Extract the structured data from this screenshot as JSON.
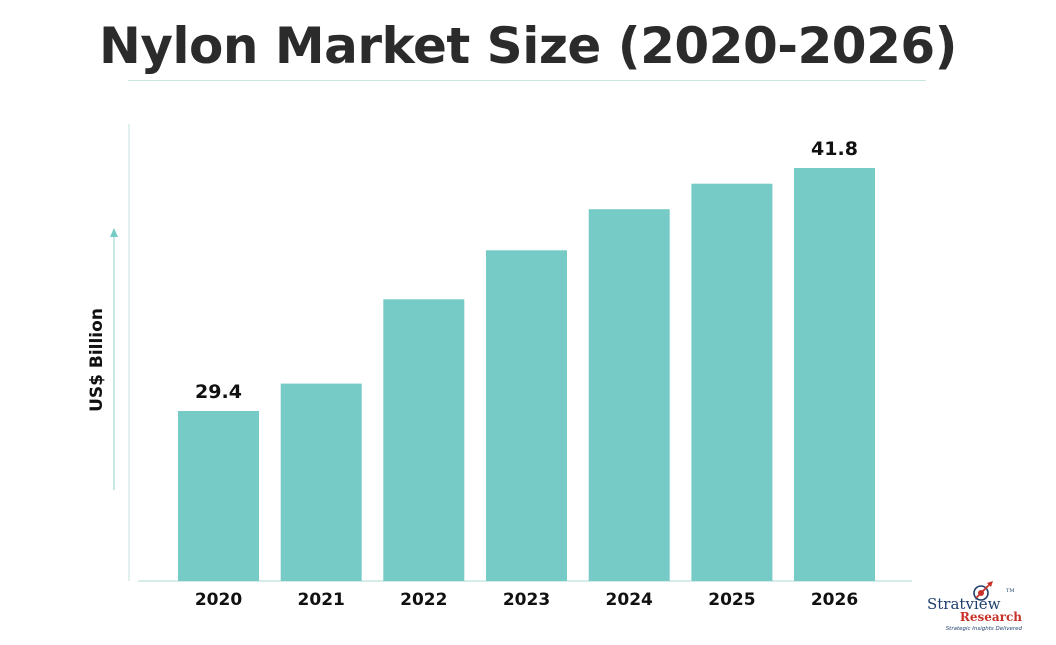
{
  "chart_data": {
    "type": "bar",
    "title": "Nylon Market Size (2020-2026)",
    "ylabel": "US$ Billion",
    "xlabel": "",
    "categories": [
      "2020",
      "2021",
      "2022",
      "2023",
      "2024",
      "2025",
      "2026"
    ],
    "values": [
      29.4,
      30.8,
      35.1,
      37.6,
      39.7,
      41.0,
      41.8
    ],
    "data_labels": [
      "29.4",
      "",
      "",
      "",
      "",
      "",
      "41.8"
    ],
    "ylim": [
      20,
      45
    ],
    "grid": false,
    "legend": "none",
    "bar_color": "#76cbc6"
  },
  "logo": {
    "name_line1": "Stratview",
    "name_line2": "Research",
    "tagline": "Strategic Insights Delivered",
    "tm": "TM"
  },
  "colors": {
    "title": "#2b2b2b",
    "bars": "#76cbc6",
    "axis": "#c8e6e2",
    "logo_navy": "#1f3f6e",
    "logo_red": "#c8322a"
  }
}
